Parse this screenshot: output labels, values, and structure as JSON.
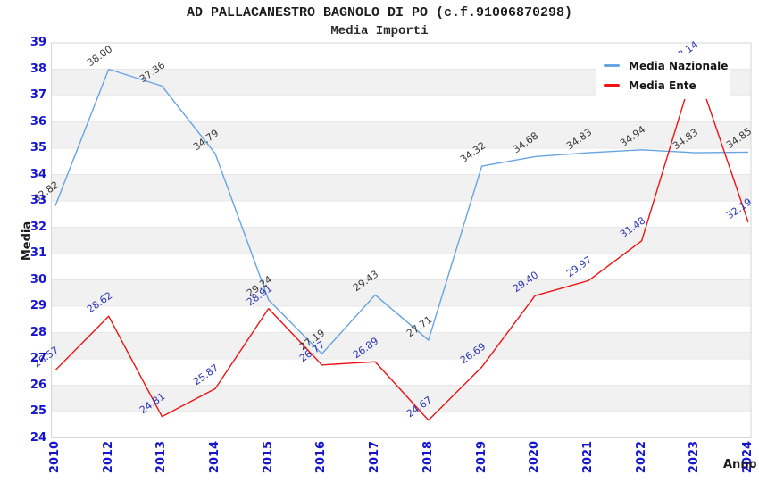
{
  "title": "AD PALLACANESTRO BAGNOLO DI PO (c.f.91006870298)",
  "subtitle": "Media Importi",
  "chart_data": {
    "type": "line",
    "title": "AD PALLACANESTRO BAGNOLO DI PO (c.f.91006870298)",
    "subtitle": "Media Importi",
    "xlabel": "Anno",
    "ylabel": "Media",
    "categories": [
      "2010",
      "2012",
      "2013",
      "2014",
      "2015",
      "2016",
      "2017",
      "2018",
      "2019",
      "2020",
      "2021",
      "2022",
      "2023",
      "2024"
    ],
    "series": [
      {
        "name": "Media Nazionale",
        "color": "#66a4e2",
        "label_color": "#3a3a3a",
        "values": [
          32.82,
          38.0,
          37.36,
          34.79,
          29.24,
          27.19,
          29.43,
          27.71,
          34.32,
          34.68,
          34.83,
          34.94,
          34.83,
          34.85
        ]
      },
      {
        "name": "Media Ente",
        "color": "#ee1414",
        "label_color": "#2b35b5",
        "values": [
          26.57,
          28.62,
          24.81,
          25.87,
          28.91,
          26.77,
          26.89,
          24.67,
          26.69,
          29.4,
          29.97,
          31.48,
          38.14,
          32.19
        ]
      }
    ],
    "ylim": [
      24,
      39
    ],
    "y_ticks": [
      39,
      38,
      37,
      36,
      35,
      34,
      33,
      32,
      31,
      30,
      29,
      28,
      27,
      26,
      25,
      24
    ],
    "grid": "horizontal-bands",
    "band_colors": [
      "#ffffff",
      "#f1f1f1"
    ],
    "gridline_color": "#e7e7e7",
    "border_color": "#d6d6d6",
    "tick_color": "#1515cf",
    "legend_position": "top-right"
  }
}
